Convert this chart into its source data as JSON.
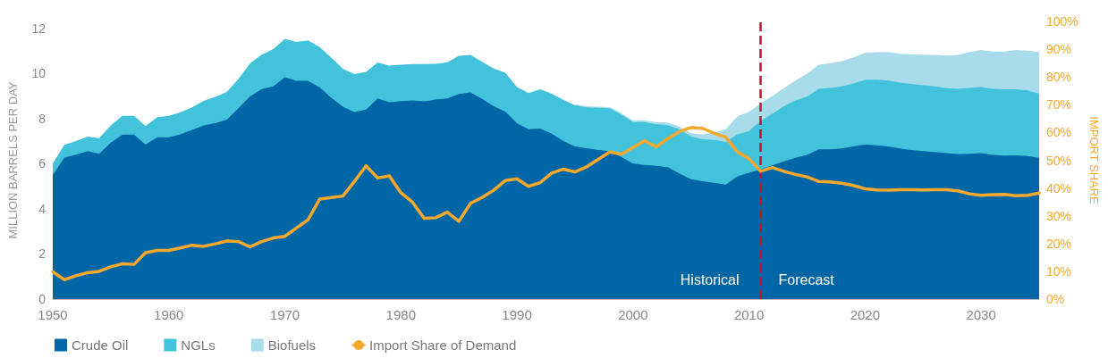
{
  "chart_data": {
    "type": "area",
    "stacked": true,
    "ylabel": "MILLION BARRELS PER DAY",
    "y2label": "IMPORT SHARE",
    "x": [
      1950,
      1951,
      1952,
      1953,
      1954,
      1955,
      1956,
      1957,
      1958,
      1959,
      1960,
      1961,
      1962,
      1963,
      1964,
      1965,
      1966,
      1967,
      1968,
      1969,
      1970,
      1971,
      1972,
      1973,
      1974,
      1975,
      1976,
      1977,
      1978,
      1979,
      1980,
      1981,
      1982,
      1983,
      1984,
      1985,
      1986,
      1987,
      1988,
      1989,
      1990,
      1991,
      1992,
      1993,
      1994,
      1995,
      1996,
      1997,
      1998,
      1999,
      2000,
      2001,
      2002,
      2003,
      2004,
      2005,
      2006,
      2007,
      2008,
      2009,
      2010,
      2011,
      2012,
      2013,
      2014,
      2015,
      2016,
      2017,
      2018,
      2019,
      2020,
      2021,
      2022,
      2023,
      2024,
      2025,
      2026,
      2027,
      2028,
      2029,
      2030,
      2031,
      2032,
      2033,
      2034,
      2035
    ],
    "series": [
      {
        "name": "Crude Oil",
        "color": "#0066a6",
        "values": [
          5.5,
          6.27,
          6.4,
          6.56,
          6.44,
          6.93,
          7.29,
          7.29,
          6.84,
          7.17,
          7.17,
          7.3,
          7.49,
          7.69,
          7.79,
          7.95,
          8.45,
          8.98,
          9.3,
          9.42,
          9.83,
          9.67,
          9.67,
          9.38,
          8.92,
          8.52,
          8.29,
          8.39,
          8.89,
          8.72,
          8.77,
          8.8,
          8.76,
          8.84,
          8.89,
          9.09,
          9.16,
          8.87,
          8.54,
          8.31,
          7.79,
          7.52,
          7.55,
          7.33,
          7.0,
          6.76,
          6.68,
          6.6,
          6.56,
          6.3,
          6.0,
          5.94,
          5.9,
          5.84,
          5.57,
          5.31,
          5.22,
          5.15,
          5.07,
          5.44,
          5.6,
          5.75,
          5.92,
          6.1,
          6.26,
          6.39,
          6.63,
          6.63,
          6.67,
          6.76,
          6.85,
          6.81,
          6.76,
          6.67,
          6.6,
          6.56,
          6.52,
          6.47,
          6.43,
          6.44,
          6.47,
          6.39,
          6.36,
          6.37,
          6.34,
          6.26
        ]
      },
      {
        "name": "NGLs",
        "color": "#42c3db",
        "values": [
          0.5,
          0.56,
          0.6,
          0.64,
          0.69,
          0.76,
          0.83,
          0.83,
          0.82,
          0.89,
          0.95,
          0.98,
          1.0,
          1.09,
          1.17,
          1.23,
          1.3,
          1.46,
          1.53,
          1.65,
          1.7,
          1.72,
          1.79,
          1.78,
          1.78,
          1.68,
          1.68,
          1.68,
          1.59,
          1.62,
          1.61,
          1.61,
          1.65,
          1.58,
          1.6,
          1.69,
          1.66,
          1.64,
          1.67,
          1.72,
          1.6,
          1.61,
          1.74,
          1.77,
          1.83,
          1.82,
          1.81,
          1.87,
          1.89,
          1.88,
          1.84,
          1.9,
          1.84,
          1.86,
          1.95,
          1.89,
          1.86,
          1.9,
          1.89,
          1.86,
          1.85,
          2.14,
          2.29,
          2.44,
          2.54,
          2.58,
          2.68,
          2.72,
          2.75,
          2.79,
          2.86,
          2.91,
          2.92,
          2.92,
          2.93,
          2.91,
          2.9,
          2.87,
          2.88,
          2.91,
          2.92,
          2.92,
          2.93,
          2.92,
          2.9,
          2.84
        ]
      },
      {
        "name": "Biofuels",
        "color": "#a8dcea",
        "values": [
          null,
          null,
          null,
          null,
          null,
          null,
          null,
          null,
          null,
          null,
          null,
          null,
          null,
          null,
          null,
          null,
          null,
          null,
          null,
          null,
          null,
          null,
          null,
          null,
          null,
          null,
          null,
          null,
          null,
          null,
          null,
          null,
          null,
          null,
          null,
          null,
          null,
          null,
          null,
          null,
          null,
          null,
          null,
          null,
          null,
          0.05,
          0.05,
          0.05,
          0.05,
          0.05,
          0.08,
          0.08,
          0.1,
          0.12,
          0.12,
          0.15,
          0.22,
          0.33,
          0.56,
          0.8,
          0.85,
          0.78,
          0.79,
          0.79,
          0.88,
          1.02,
          1.07,
          1.1,
          1.12,
          1.16,
          1.2,
          1.22,
          1.27,
          1.28,
          1.31,
          1.36,
          1.4,
          1.45,
          1.51,
          1.6,
          1.64,
          1.66,
          1.68,
          1.74,
          1.76,
          1.85
        ]
      },
      {
        "name": "Import Share of Demand",
        "type": "line",
        "axis": "y2",
        "color": "#f5a82b",
        "values": [
          9.8,
          7.0,
          8.4,
          9.5,
          10.0,
          11.6,
          12.7,
          12.5,
          16.7,
          17.5,
          17.5,
          18.4,
          19.4,
          19.0,
          19.9,
          20.9,
          20.7,
          18.8,
          20.7,
          22.0,
          22.6,
          25.6,
          28.6,
          36.0,
          36.6,
          37.1,
          42.4,
          48.0,
          43.6,
          44.4,
          38.3,
          34.9,
          29.1,
          29.3,
          31.3,
          28.0,
          34.5,
          36.6,
          39.2,
          42.7,
          43.3,
          40.6,
          41.9,
          45.4,
          46.8,
          45.8,
          47.6,
          50.3,
          53.0,
          52.2,
          54.6,
          57.0,
          54.8,
          57.8,
          60.3,
          61.8,
          61.5,
          59.7,
          58.3,
          53.0,
          50.6,
          46.0,
          47.4,
          46.0,
          44.9,
          44.0,
          42.4,
          42.2,
          41.7,
          40.9,
          39.7,
          39.3,
          39.2,
          39.4,
          39.4,
          39.3,
          39.4,
          39.4,
          39.0,
          37.9,
          37.4,
          37.6,
          37.7,
          37.2,
          37.4,
          38.2
        ]
      }
    ],
    "xlim": [
      1950,
      2035
    ],
    "xticks": [
      1950,
      1960,
      1970,
      1980,
      1990,
      2000,
      2010,
      2020,
      2030
    ],
    "ylim": [
      0,
      12.3
    ],
    "yticks": [
      0,
      2,
      4,
      6,
      8,
      10,
      12
    ],
    "y2lim": [
      0,
      100
    ],
    "y2ticks": [
      {
        "value": 0,
        "label": "0%"
      },
      {
        "value": 10,
        "label": "10%"
      },
      {
        "value": 20,
        "label": "20%"
      },
      {
        "value": 30,
        "label": "30%"
      },
      {
        "value": 40,
        "label": "40%"
      },
      {
        "value": 50,
        "label": "50%"
      },
      {
        "value": 60,
        "label": "60%"
      },
      {
        "value": 70,
        "label": "70%"
      },
      {
        "value": 80,
        "label": "80%"
      },
      {
        "value": 90,
        "label": "90%"
      },
      {
        "value": 100,
        "label": "100%"
      }
    ],
    "ref_lines": [
      {
        "axis": "x",
        "value": 2011,
        "color": "#c8102e",
        "line_style": "dashed"
      }
    ],
    "annotations": [
      "Historical",
      "Forecast"
    ],
    "grid": false,
    "legend": "bottom",
    "line_style": "solid",
    "marker": "none"
  }
}
